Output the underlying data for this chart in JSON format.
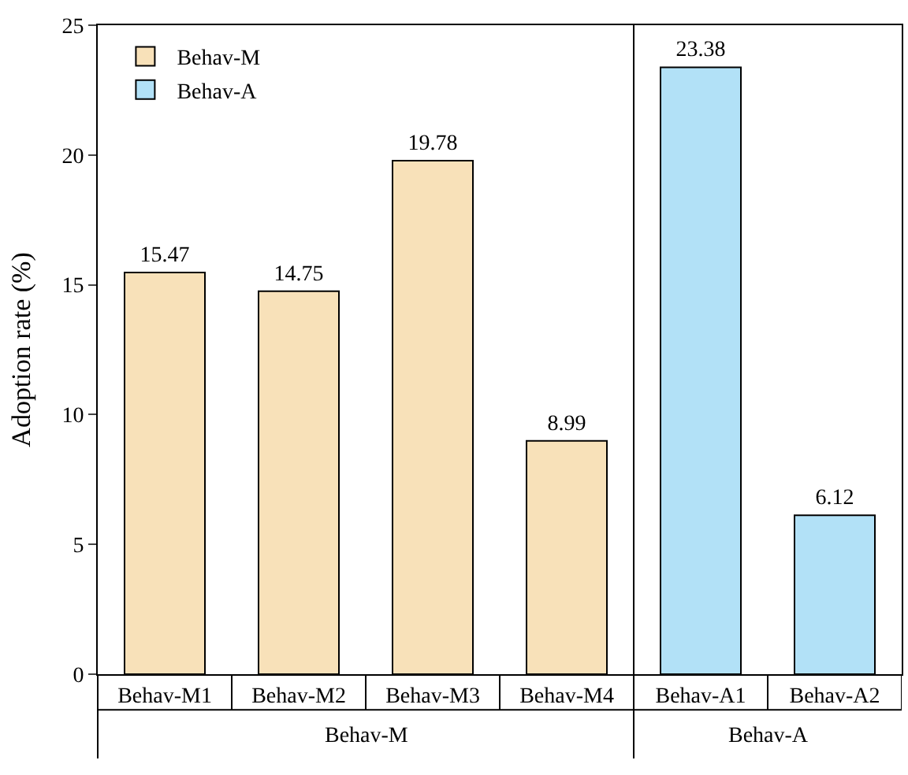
{
  "chart_data": {
    "type": "bar",
    "ylabel": "Adoption rate (%)",
    "categories": [
      "Behav-M1",
      "Behav-M2",
      "Behav-M3",
      "Behav-M4",
      "Behav-A1",
      "Behav-A2"
    ],
    "series": [
      {
        "name": "Behav-M",
        "color": "#f8e1b9",
        "values": [
          15.47,
          14.75,
          19.78,
          8.99,
          null,
          null
        ]
      },
      {
        "name": "Behav-A",
        "color": "#b2e1f7",
        "values": [
          null,
          null,
          null,
          null,
          23.38,
          6.12
        ]
      }
    ],
    "ylim": [
      0,
      25
    ],
    "yticks": [
      0,
      5,
      10,
      15,
      20,
      25
    ],
    "data_labels": true,
    "legend": "top left",
    "annotations": [
      "Behav-M",
      "Behav-A"
    ]
  }
}
